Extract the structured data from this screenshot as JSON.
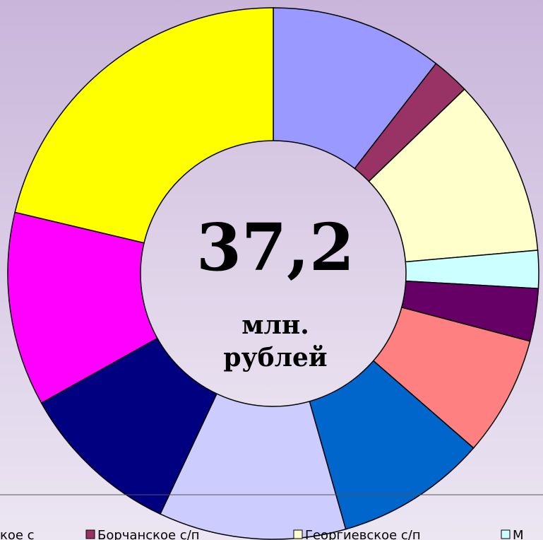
{
  "chart_data": {
    "type": "pie",
    "donut": true,
    "categories": [
      "кое с",
      "Борчанское с/п",
      "Георгиевское с/п",
      "М",
      null,
      null,
      null,
      null,
      null,
      null,
      null
    ],
    "values": [
      10.5,
      2.3,
      10.8,
      2.3,
      3.2,
      7.3,
      9.2,
      11.4,
      9.9,
      11.8,
      21.3
    ],
    "colors": [
      "#9999ff",
      "#993366",
      "#ffffcc",
      "#ccffff",
      "#660066",
      "#ff8080",
      "#0066cc",
      "#ccccff",
      "#000080",
      "#ff00ff",
      "#ffff00"
    ],
    "center_text": [
      "37,2",
      "млн.",
      "рублей"
    ]
  }
}
